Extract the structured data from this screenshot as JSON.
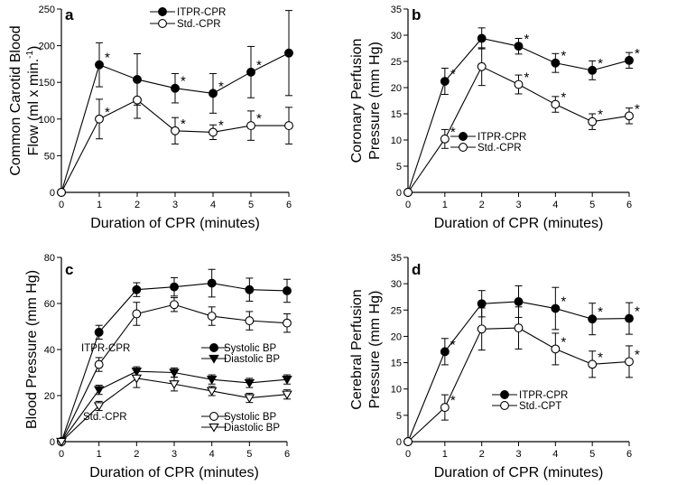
{
  "colors": {
    "axis": "#000000",
    "filled_marker": "#000000",
    "open_marker": "#ffffff"
  },
  "chart_data": [
    {
      "type": "line",
      "panel": "a",
      "ylabel": "Common Carotid Blood Flow (ml x min.-1)",
      "ylabel_lines": [
        "Common Carotid Blood",
        "Flow (ml x min.",
        "-1",
        ")"
      ],
      "xlabel": "Duration of CPR (minutes)",
      "x": [
        0,
        1,
        2,
        3,
        4,
        5,
        6
      ],
      "xlim": [
        0,
        6
      ],
      "ylim": [
        0,
        250
      ],
      "yticks": [
        0,
        50,
        100,
        150,
        200,
        250
      ],
      "ytick_labels": [
        "0",
        "50",
        "100",
        "150",
        "200",
        "250"
      ],
      "series": [
        {
          "name": "ITPR-CPR",
          "marker": "filled-circle",
          "values": [
            0,
            174,
            154,
            142,
            135,
            164,
            190
          ],
          "errors": [
            0,
            30,
            35,
            20,
            27,
            35,
            58
          ],
          "stars": [
            false,
            true,
            false,
            true,
            true,
            true,
            false
          ]
        },
        {
          "name": "Std.-CPR",
          "marker": "open-circle",
          "values": [
            0,
            100,
            126,
            84,
            82,
            91,
            91
          ],
          "errors": [
            0,
            27,
            25,
            18,
            10,
            20,
            25
          ],
          "stars": [
            false,
            true,
            false,
            true,
            true,
            true,
            false
          ]
        }
      ],
      "legend": [
        {
          "marker": "filled-circle",
          "label": "ITPR-CPR"
        },
        {
          "marker": "open-circle",
          "label": "Std.-CPR"
        }
      ],
      "legend_position": "top-center"
    },
    {
      "type": "line",
      "panel": "b",
      "ylabel": "Coronary Perfusion Pressure (mm Hg)",
      "ylabel_lines": [
        "Coronary Perfusion",
        "Pressure (mm Hg)"
      ],
      "xlabel": "Duration of CPR (minutes)",
      "x": [
        0,
        1,
        2,
        3,
        4,
        5,
        6
      ],
      "xlim": [
        0,
        6
      ],
      "ylim": [
        0,
        35
      ],
      "yticks": [
        0,
        5,
        10,
        15,
        20,
        25,
        30,
        35
      ],
      "ytick_labels": [
        "0",
        "5",
        "10",
        "15",
        "20",
        "25",
        "30",
        "35"
      ],
      "series": [
        {
          "name": "ITPR-CPR",
          "marker": "filled-circle",
          "values": [
            0,
            21.2,
            29.4,
            27.9,
            24.7,
            23.3,
            25.2
          ],
          "errors": [
            0,
            2.5,
            2,
            1.5,
            1.8,
            1.8,
            1.5
          ],
          "stars": [
            false,
            true,
            false,
            true,
            true,
            true,
            true
          ]
        },
        {
          "name": "Std.-CPR",
          "marker": "open-circle",
          "values": [
            0,
            10.2,
            24,
            20.6,
            16.8,
            13.5,
            14.6
          ],
          "errors": [
            0,
            1.8,
            3.6,
            1.8,
            1.5,
            1.5,
            1.5
          ],
          "stars": [
            false,
            true,
            false,
            true,
            true,
            true,
            true
          ]
        }
      ],
      "legend": [
        {
          "marker": "filled-circle",
          "label": "ITPR-CPR"
        },
        {
          "marker": "open-circle",
          "label": "Std.-CPR"
        }
      ],
      "legend_position": "middle-left"
    },
    {
      "type": "line",
      "panel": "c",
      "ylabel": "Blood Pressure (mm Hg)",
      "ylabel_lines": [
        "Blood Pressure (mm Hg)"
      ],
      "xlabel": "Duration of CPR (minutes)",
      "x": [
        0,
        1,
        2,
        3,
        4,
        5,
        6
      ],
      "xlim": [
        0,
        6
      ],
      "ylim": [
        0,
        80
      ],
      "yticks": [
        0,
        20,
        40,
        60,
        80
      ],
      "ytick_labels": [
        "0",
        "20",
        "40",
        "60",
        "80"
      ],
      "series": [
        {
          "name": "ITPR-CPR Systolic BP",
          "marker": "filled-circle",
          "values": [
            0,
            47.5,
            66,
            67.2,
            68.8,
            66,
            65.5
          ],
          "errors": [
            0,
            3,
            3,
            4,
            6,
            5,
            5
          ]
        },
        {
          "name": "Std.-CPR Systolic BP",
          "marker": "open-circle",
          "values": [
            0,
            33.5,
            55.5,
            59.5,
            54.5,
            52.5,
            51.5
          ],
          "errors": [
            0,
            3,
            5,
            3,
            4,
            4,
            4
          ]
        },
        {
          "name": "ITPR-CPR Diastolic BP",
          "marker": "filled-triangle-down",
          "values": [
            0,
            22.5,
            30.5,
            30,
            27,
            25.5,
            27
          ],
          "errors": [
            0,
            2,
            2,
            2,
            2,
            2,
            2
          ]
        },
        {
          "name": "Std.-CPR Diastolic BP",
          "marker": "open-triangle-down",
          "values": [
            0,
            15.5,
            27.5,
            25,
            22,
            19,
            20.5
          ],
          "errors": [
            0,
            2,
            4,
            3,
            2,
            2,
            2
          ]
        }
      ],
      "legend_groups": [
        {
          "group": "ITPR-CPR",
          "items": [
            {
              "marker": "filled-circle",
              "label": "Systolic BP"
            },
            {
              "marker": "filled-triangle-down",
              "label": "Diastolic BP"
            }
          ]
        },
        {
          "group": "Std.-CPR",
          "items": [
            {
              "marker": "open-circle",
              "label": "Systolic BP"
            },
            {
              "marker": "open-triangle-down",
              "label": "Diastolic BP"
            }
          ]
        }
      ],
      "legend_position": "center"
    },
    {
      "type": "line",
      "panel": "d",
      "ylabel": "Cerebral Perfusion Pressure (mm Hg)",
      "ylabel_lines": [
        "Cerebral Perfusion",
        "Pressure (mm Hg)"
      ],
      "xlabel": "Duration of CPR (minutes)",
      "x": [
        0,
        1,
        2,
        3,
        4,
        5,
        6
      ],
      "xlim": [
        0,
        6
      ],
      "ylim": [
        0,
        35
      ],
      "yticks": [
        0,
        5,
        10,
        15,
        20,
        25,
        30,
        35
      ],
      "ytick_labels": [
        "0",
        "5",
        "10",
        "15",
        "20",
        "25",
        "30",
        "35"
      ],
      "series": [
        {
          "name": "ITPR-CPR",
          "marker": "filled-circle",
          "values": [
            0,
            17.1,
            26.2,
            26.6,
            25.3,
            23.3,
            23.4
          ],
          "errors": [
            0,
            2.5,
            2.5,
            3,
            4,
            3,
            3
          ],
          "stars": [
            false,
            true,
            false,
            false,
            true,
            true,
            true
          ]
        },
        {
          "name": "Std.-CPT",
          "marker": "open-circle",
          "values": [
            0,
            6.5,
            21.4,
            21.6,
            17.6,
            14.7,
            15.2
          ],
          "errors": [
            0,
            2.4,
            4,
            4,
            3,
            2.5,
            3
          ],
          "stars": [
            false,
            true,
            false,
            false,
            true,
            true,
            true
          ]
        }
      ],
      "legend": [
        {
          "marker": "filled-circle",
          "label": "ITPR-CPR"
        },
        {
          "marker": "open-circle",
          "label": "Std.-CPT"
        }
      ],
      "legend_position": "bottom-center"
    }
  ]
}
